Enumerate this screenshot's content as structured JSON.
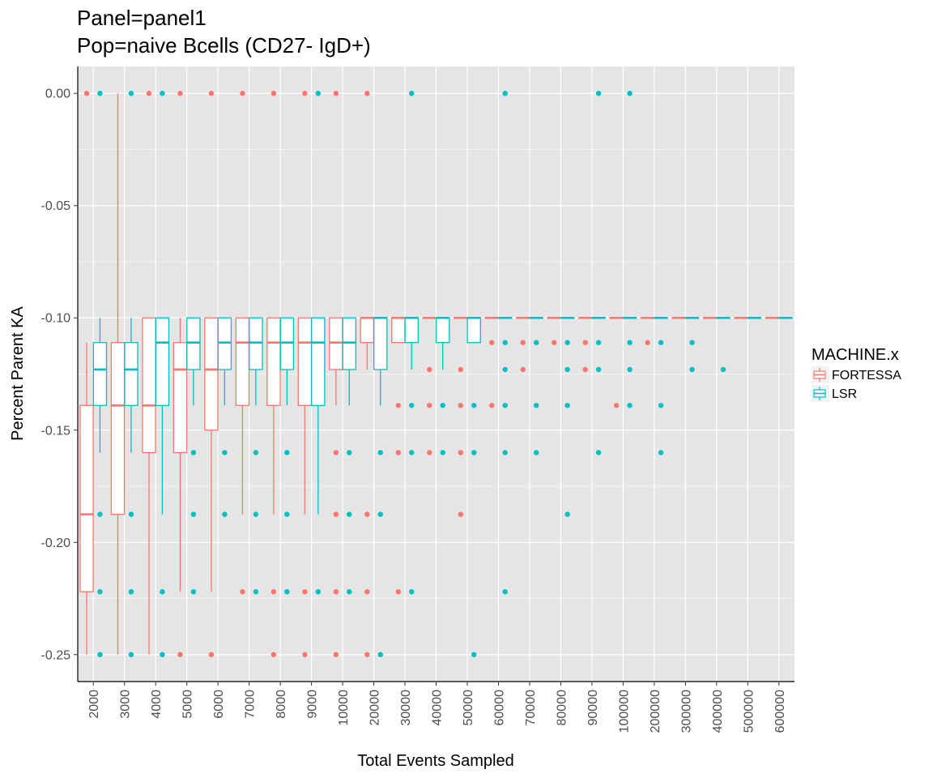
{
  "chart_data": {
    "type": "boxplot",
    "title_line1": "Panel=panel1",
    "title_line2": "Pop=naive Bcells (CD27- IgD+)",
    "xlabel": "Total Events Sampled",
    "ylabel": "Percent Parent KA",
    "ylim": [
      -0.262,
      0.012
    ],
    "y_ticks": [
      0.0,
      -0.05,
      -0.1,
      -0.15,
      -0.2,
      -0.25
    ],
    "y_tick_labels": [
      "0.00",
      "-0.05",
      "-0.10",
      "-0.15",
      "-0.20",
      "-0.25"
    ],
    "categories": [
      "2000",
      "3000",
      "4000",
      "5000",
      "6000",
      "7000",
      "8000",
      "9000",
      "10000",
      "20000",
      "30000",
      "40000",
      "50000",
      "60000",
      "70000",
      "80000",
      "90000",
      "100000",
      "200000",
      "300000",
      "400000",
      "500000",
      "600000"
    ],
    "grid": true,
    "legend": {
      "title": "MACHINE.x",
      "position": "right",
      "entries": [
        {
          "name": "FORTESSA",
          "color": "#F8766D"
        },
        {
          "name": "LSR",
          "color": "#00BFC4"
        }
      ]
    },
    "colors": {
      "FORTESSA": "#F8766D",
      "LSR": "#00BFC4",
      "panel_bg": "#E5E5E5",
      "grid": "#FFFFFF"
    },
    "series": [
      {
        "name": "FORTESSA",
        "boxes": [
          {
            "category": "2000",
            "min": -0.25,
            "q1": -0.222,
            "median": -0.1875,
            "q3": -0.139,
            "max": -0.111
          },
          {
            "category": "3000",
            "min": -0.25,
            "q1": -0.1875,
            "median": -0.139,
            "q3": -0.111,
            "max": 0.0
          },
          {
            "category": "4000",
            "min": -0.25,
            "q1": -0.16,
            "median": -0.139,
            "q3": -0.1,
            "max": -0.1
          },
          {
            "category": "5000",
            "min": -0.222,
            "q1": -0.16,
            "median": -0.123,
            "q3": -0.111,
            "max": -0.1
          },
          {
            "category": "6000",
            "min": -0.222,
            "q1": -0.15,
            "median": -0.123,
            "q3": -0.1,
            "max": -0.1
          },
          {
            "category": "7000",
            "min": -0.1875,
            "q1": -0.139,
            "median": -0.111,
            "q3": -0.1,
            "max": -0.1
          },
          {
            "category": "8000",
            "min": -0.1875,
            "q1": -0.139,
            "median": -0.111,
            "q3": -0.1,
            "max": -0.1
          },
          {
            "category": "9000",
            "min": -0.1875,
            "q1": -0.139,
            "median": -0.111,
            "q3": -0.1,
            "max": -0.1
          },
          {
            "category": "10000",
            "min": -0.139,
            "q1": -0.123,
            "median": -0.111,
            "q3": -0.1,
            "max": -0.1
          },
          {
            "category": "20000",
            "min": -0.123,
            "q1": -0.111,
            "median": -0.1,
            "q3": -0.1,
            "max": -0.1
          },
          {
            "category": "30000",
            "min": -0.111,
            "q1": -0.111,
            "median": -0.1,
            "q3": -0.1,
            "max": -0.1
          },
          {
            "category": "40000",
            "min": -0.1,
            "q1": -0.1,
            "median": -0.1,
            "q3": -0.1,
            "max": -0.1
          },
          {
            "category": "50000",
            "min": -0.1,
            "q1": -0.1,
            "median": -0.1,
            "q3": -0.1,
            "max": -0.1
          },
          {
            "category": "60000",
            "min": -0.1,
            "q1": -0.1,
            "median": -0.1,
            "q3": -0.1,
            "max": -0.1
          },
          {
            "category": "70000",
            "min": -0.1,
            "q1": -0.1,
            "median": -0.1,
            "q3": -0.1,
            "max": -0.1
          },
          {
            "category": "80000",
            "min": -0.1,
            "q1": -0.1,
            "median": -0.1,
            "q3": -0.1,
            "max": -0.1
          },
          {
            "category": "90000",
            "min": -0.1,
            "q1": -0.1,
            "median": -0.1,
            "q3": -0.1,
            "max": -0.1
          },
          {
            "category": "100000",
            "min": -0.1,
            "q1": -0.1,
            "median": -0.1,
            "q3": -0.1,
            "max": -0.1
          },
          {
            "category": "200000",
            "min": -0.1,
            "q1": -0.1,
            "median": -0.1,
            "q3": -0.1,
            "max": -0.1
          },
          {
            "category": "300000",
            "min": -0.1,
            "q1": -0.1,
            "median": -0.1,
            "q3": -0.1,
            "max": -0.1
          },
          {
            "category": "400000",
            "min": -0.1,
            "q1": -0.1,
            "median": -0.1,
            "q3": -0.1,
            "max": -0.1
          },
          {
            "category": "500000",
            "min": -0.1,
            "q1": -0.1,
            "median": -0.1,
            "q3": -0.1,
            "max": -0.1
          },
          {
            "category": "600000",
            "min": -0.1,
            "q1": -0.1,
            "median": -0.1,
            "q3": -0.1,
            "max": -0.1
          }
        ],
        "outliers": [
          {
            "category": "2000",
            "y": 0.0
          },
          {
            "category": "4000",
            "y": 0.0
          },
          {
            "category": "5000",
            "y": 0.0
          },
          {
            "category": "5000",
            "y": -0.25
          },
          {
            "category": "6000",
            "y": 0.0
          },
          {
            "category": "6000",
            "y": -0.25
          },
          {
            "category": "7000",
            "y": 0.0
          },
          {
            "category": "7000",
            "y": -0.222
          },
          {
            "category": "8000",
            "y": 0.0
          },
          {
            "category": "8000",
            "y": -0.222
          },
          {
            "category": "8000",
            "y": -0.25
          },
          {
            "category": "9000",
            "y": 0.0
          },
          {
            "category": "9000",
            "y": -0.222
          },
          {
            "category": "9000",
            "y": -0.25
          },
          {
            "category": "10000",
            "y": 0.0
          },
          {
            "category": "10000",
            "y": -0.16
          },
          {
            "category": "10000",
            "y": -0.1875
          },
          {
            "category": "10000",
            "y": -0.222
          },
          {
            "category": "10000",
            "y": -0.25
          },
          {
            "category": "20000",
            "y": 0.0
          },
          {
            "category": "20000",
            "y": -0.1875
          },
          {
            "category": "20000",
            "y": -0.222
          },
          {
            "category": "20000",
            "y": -0.25
          },
          {
            "category": "30000",
            "y": -0.139
          },
          {
            "category": "30000",
            "y": -0.16
          },
          {
            "category": "30000",
            "y": -0.222
          },
          {
            "category": "40000",
            "y": -0.123
          },
          {
            "category": "40000",
            "y": -0.139
          },
          {
            "category": "40000",
            "y": -0.16
          },
          {
            "category": "50000",
            "y": -0.123
          },
          {
            "category": "50000",
            "y": -0.139
          },
          {
            "category": "50000",
            "y": -0.16
          },
          {
            "category": "50000",
            "y": -0.1875
          },
          {
            "category": "60000",
            "y": -0.111
          },
          {
            "category": "60000",
            "y": -0.139
          },
          {
            "category": "70000",
            "y": -0.111
          },
          {
            "category": "70000",
            "y": -0.123
          },
          {
            "category": "80000",
            "y": -0.111
          },
          {
            "category": "90000",
            "y": -0.111
          },
          {
            "category": "90000",
            "y": -0.123
          },
          {
            "category": "100000",
            "y": -0.139
          },
          {
            "category": "200000",
            "y": -0.111
          }
        ]
      },
      {
        "name": "LSR",
        "boxes": [
          {
            "category": "2000",
            "min": -0.16,
            "q1": -0.139,
            "median": -0.123,
            "q3": -0.111,
            "max": -0.1
          },
          {
            "category": "3000",
            "min": -0.16,
            "q1": -0.139,
            "median": -0.123,
            "q3": -0.111,
            "max": -0.1
          },
          {
            "category": "4000",
            "min": -0.1875,
            "q1": -0.139,
            "median": -0.111,
            "q3": -0.1,
            "max": -0.1
          },
          {
            "category": "5000",
            "min": -0.139,
            "q1": -0.123,
            "median": -0.111,
            "q3": -0.1,
            "max": -0.1
          },
          {
            "category": "6000",
            "min": -0.139,
            "q1": -0.123,
            "median": -0.111,
            "q3": -0.1,
            "max": -0.1
          },
          {
            "category": "7000",
            "min": -0.139,
            "q1": -0.123,
            "median": -0.111,
            "q3": -0.1,
            "max": -0.1
          },
          {
            "category": "8000",
            "min": -0.139,
            "q1": -0.123,
            "median": -0.111,
            "q3": -0.1,
            "max": -0.1
          },
          {
            "category": "9000",
            "min": -0.1875,
            "q1": -0.139,
            "median": -0.111,
            "q3": -0.1,
            "max": -0.1
          },
          {
            "category": "10000",
            "min": -0.139,
            "q1": -0.123,
            "median": -0.111,
            "q3": -0.1,
            "max": -0.1
          },
          {
            "category": "20000",
            "min": -0.139,
            "q1": -0.123,
            "median": -0.1,
            "q3": -0.1,
            "max": -0.1
          },
          {
            "category": "30000",
            "min": -0.123,
            "q1": -0.111,
            "median": -0.1,
            "q3": -0.1,
            "max": -0.1
          },
          {
            "category": "40000",
            "min": -0.123,
            "q1": -0.111,
            "median": -0.1,
            "q3": -0.1,
            "max": -0.1
          },
          {
            "category": "50000",
            "min": -0.111,
            "q1": -0.111,
            "median": -0.1,
            "q3": -0.1,
            "max": -0.1
          },
          {
            "category": "60000",
            "min": -0.1,
            "q1": -0.1,
            "median": -0.1,
            "q3": -0.1,
            "max": -0.1
          },
          {
            "category": "70000",
            "min": -0.1,
            "q1": -0.1,
            "median": -0.1,
            "q3": -0.1,
            "max": -0.1
          },
          {
            "category": "80000",
            "min": -0.1,
            "q1": -0.1,
            "median": -0.1,
            "q3": -0.1,
            "max": -0.1
          },
          {
            "category": "90000",
            "min": -0.1,
            "q1": -0.1,
            "median": -0.1,
            "q3": -0.1,
            "max": -0.1
          },
          {
            "category": "100000",
            "min": -0.1,
            "q1": -0.1,
            "median": -0.1,
            "q3": -0.1,
            "max": -0.1
          },
          {
            "category": "200000",
            "min": -0.1,
            "q1": -0.1,
            "median": -0.1,
            "q3": -0.1,
            "max": -0.1
          },
          {
            "category": "300000",
            "min": -0.1,
            "q1": -0.1,
            "median": -0.1,
            "q3": -0.1,
            "max": -0.1
          },
          {
            "category": "400000",
            "min": -0.1,
            "q1": -0.1,
            "median": -0.1,
            "q3": -0.1,
            "max": -0.1
          },
          {
            "category": "500000",
            "min": -0.1,
            "q1": -0.1,
            "median": -0.1,
            "q3": -0.1,
            "max": -0.1
          },
          {
            "category": "600000",
            "min": -0.1,
            "q1": -0.1,
            "median": -0.1,
            "q3": -0.1,
            "max": -0.1
          }
        ],
        "outliers": [
          {
            "category": "2000",
            "y": 0.0
          },
          {
            "category": "2000",
            "y": -0.1875
          },
          {
            "category": "2000",
            "y": -0.222
          },
          {
            "category": "2000",
            "y": -0.25
          },
          {
            "category": "3000",
            "y": 0.0
          },
          {
            "category": "3000",
            "y": -0.1875
          },
          {
            "category": "3000",
            "y": -0.222
          },
          {
            "category": "3000",
            "y": -0.25
          },
          {
            "category": "4000",
            "y": 0.0
          },
          {
            "category": "4000",
            "y": -0.222
          },
          {
            "category": "4000",
            "y": -0.25
          },
          {
            "category": "5000",
            "y": -0.16
          },
          {
            "category": "5000",
            "y": -0.1875
          },
          {
            "category": "5000",
            "y": -0.222
          },
          {
            "category": "6000",
            "y": -0.16
          },
          {
            "category": "6000",
            "y": -0.1875
          },
          {
            "category": "7000",
            "y": -0.16
          },
          {
            "category": "7000",
            "y": -0.1875
          },
          {
            "category": "7000",
            "y": -0.222
          },
          {
            "category": "8000",
            "y": -0.16
          },
          {
            "category": "8000",
            "y": -0.1875
          },
          {
            "category": "8000",
            "y": -0.222
          },
          {
            "category": "9000",
            "y": 0.0
          },
          {
            "category": "9000",
            "y": -0.222
          },
          {
            "category": "10000",
            "y": -0.16
          },
          {
            "category": "10000",
            "y": -0.1875
          },
          {
            "category": "10000",
            "y": -0.222
          },
          {
            "category": "20000",
            "y": -0.16
          },
          {
            "category": "20000",
            "y": -0.1875
          },
          {
            "category": "20000",
            "y": -0.25
          },
          {
            "category": "30000",
            "y": 0.0
          },
          {
            "category": "30000",
            "y": -0.139
          },
          {
            "category": "30000",
            "y": -0.16
          },
          {
            "category": "30000",
            "y": -0.222
          },
          {
            "category": "40000",
            "y": -0.139
          },
          {
            "category": "40000",
            "y": -0.16
          },
          {
            "category": "50000",
            "y": -0.139
          },
          {
            "category": "50000",
            "y": -0.16
          },
          {
            "category": "50000",
            "y": -0.25
          },
          {
            "category": "60000",
            "y": 0.0
          },
          {
            "category": "60000",
            "y": -0.111
          },
          {
            "category": "60000",
            "y": -0.123
          },
          {
            "category": "60000",
            "y": -0.139
          },
          {
            "category": "60000",
            "y": -0.16
          },
          {
            "category": "60000",
            "y": -0.222
          },
          {
            "category": "70000",
            "y": -0.111
          },
          {
            "category": "70000",
            "y": -0.139
          },
          {
            "category": "70000",
            "y": -0.16
          },
          {
            "category": "80000",
            "y": -0.111
          },
          {
            "category": "80000",
            "y": -0.123
          },
          {
            "category": "80000",
            "y": -0.139
          },
          {
            "category": "80000",
            "y": -0.1875
          },
          {
            "category": "90000",
            "y": 0.0
          },
          {
            "category": "90000",
            "y": -0.111
          },
          {
            "category": "90000",
            "y": -0.123
          },
          {
            "category": "90000",
            "y": -0.16
          },
          {
            "category": "100000",
            "y": 0.0
          },
          {
            "category": "100000",
            "y": -0.111
          },
          {
            "category": "100000",
            "y": -0.123
          },
          {
            "category": "100000",
            "y": -0.139
          },
          {
            "category": "200000",
            "y": -0.111
          },
          {
            "category": "200000",
            "y": -0.139
          },
          {
            "category": "200000",
            "y": -0.16
          },
          {
            "category": "300000",
            "y": -0.111
          },
          {
            "category": "300000",
            "y": -0.123
          },
          {
            "category": "400000",
            "y": -0.123
          }
        ]
      }
    ]
  }
}
